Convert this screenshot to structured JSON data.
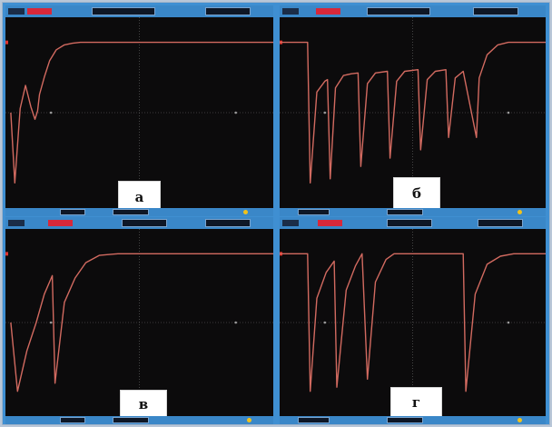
{
  "colors": {
    "trace": "#d26a60",
    "grid": "#6b6b6b",
    "screen": "#0c0b0c",
    "bezel": "#3a87c8",
    "marker": "#e1342f"
  },
  "chart_data": [
    {
      "type": "line",
      "label": "а",
      "xlim": [
        0,
        10
      ],
      "ylim": [
        -1,
        1
      ],
      "grid": false,
      "x": [
        0.2,
        0.35,
        0.55,
        0.75,
        0.95,
        1.1,
        1.2,
        1.27,
        1.45,
        1.65,
        1.9,
        2.2,
        2.5,
        2.8,
        3.2,
        10
      ],
      "y": [
        0.0,
        -0.85,
        0.05,
        0.33,
        0.07,
        -0.08,
        0.02,
        0.22,
        0.43,
        0.63,
        0.76,
        0.82,
        0.84,
        0.85,
        0.85,
        0.85
      ]
    },
    {
      "type": "line",
      "label": "б",
      "xlim": [
        0,
        10
      ],
      "ylim": [
        -1,
        1
      ],
      "grid": false,
      "x": [
        0.0,
        1.05,
        1.15,
        1.4,
        1.7,
        1.8,
        1.9,
        2.1,
        2.4,
        2.7,
        2.95,
        3.05,
        3.3,
        3.6,
        4.05,
        4.15,
        4.4,
        4.7,
        5.2,
        5.3,
        5.55,
        5.85,
        6.25,
        6.35,
        6.6,
        6.9,
        7.4,
        7.5,
        7.8,
        8.2,
        8.6,
        9.0,
        10
      ],
      "y": [
        0.85,
        0.85,
        -0.85,
        0.25,
        0.38,
        0.4,
        -0.8,
        0.3,
        0.45,
        0.47,
        0.48,
        -0.65,
        0.35,
        0.48,
        0.5,
        -0.55,
        0.38,
        0.5,
        0.52,
        -0.45,
        0.4,
        0.5,
        0.52,
        -0.3,
        0.42,
        0.5,
        -0.3,
        0.42,
        0.7,
        0.82,
        0.85,
        0.85,
        0.85
      ]
    },
    {
      "type": "line",
      "label": "в",
      "xlim": [
        0,
        10
      ],
      "ylim": [
        -1,
        1
      ],
      "grid": false,
      "x": [
        0.2,
        0.45,
        0.8,
        1.15,
        1.45,
        1.75,
        1.85,
        2.2,
        2.6,
        3.0,
        3.5,
        4.2,
        10
      ],
      "y": [
        0.0,
        -0.85,
        -0.35,
        0.0,
        0.35,
        0.58,
        -0.75,
        0.25,
        0.55,
        0.74,
        0.83,
        0.85,
        0.85
      ]
    },
    {
      "type": "line",
      "label": "г",
      "xlim": [
        0,
        10
      ],
      "ylim": [
        -1,
        1
      ],
      "grid": false,
      "x": [
        0.0,
        1.05,
        1.15,
        1.4,
        1.75,
        2.05,
        2.15,
        2.5,
        2.85,
        3.1,
        3.3,
        3.6,
        4.0,
        4.3,
        4.6,
        4.9,
        5.2,
        5.5,
        6.2,
        6.9,
        7.0,
        7.35,
        7.8,
        8.3,
        8.8,
        10
      ],
      "y": [
        0.85,
        0.85,
        -0.85,
        0.3,
        0.62,
        0.76,
        -0.8,
        0.4,
        0.7,
        0.85,
        -0.7,
        0.5,
        0.78,
        0.85,
        0.85,
        0.85,
        0.85,
        0.85,
        0.85,
        0.85,
        -0.85,
        0.35,
        0.72,
        0.82,
        0.85,
        0.85
      ]
    }
  ]
}
